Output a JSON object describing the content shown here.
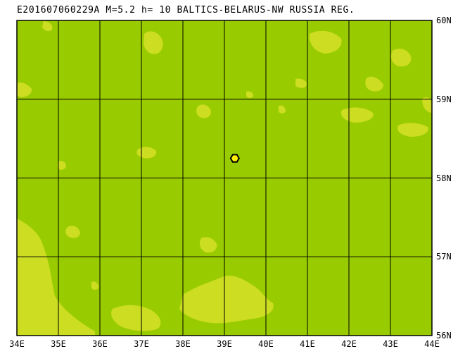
{
  "header": {
    "title": "E201607060229A M=5.2 h= 10 BALTICS-BELARUS-NW RUSSIA REG."
  },
  "map": {
    "lon_labels": [
      "34E",
      "35E",
      "36E",
      "37E",
      "38E",
      "39E",
      "40E",
      "41E",
      "42E",
      "43E",
      "44E"
    ],
    "lat_labels": [
      "60N",
      "59N",
      "58N",
      "57N",
      "56N"
    ],
    "lon_range": [
      34,
      44
    ],
    "lat_range": [
      56,
      60
    ],
    "epicenter": {
      "lon": 39.25,
      "lat": 58.25
    },
    "colors": {
      "land": "#99cc00",
      "water": "#ccdd22",
      "grid": "#000000",
      "marker_fill": "#ffee00",
      "marker_stroke": "#000000"
    },
    "icons": {
      "epicenter": "hexagon-marker-icon"
    }
  }
}
